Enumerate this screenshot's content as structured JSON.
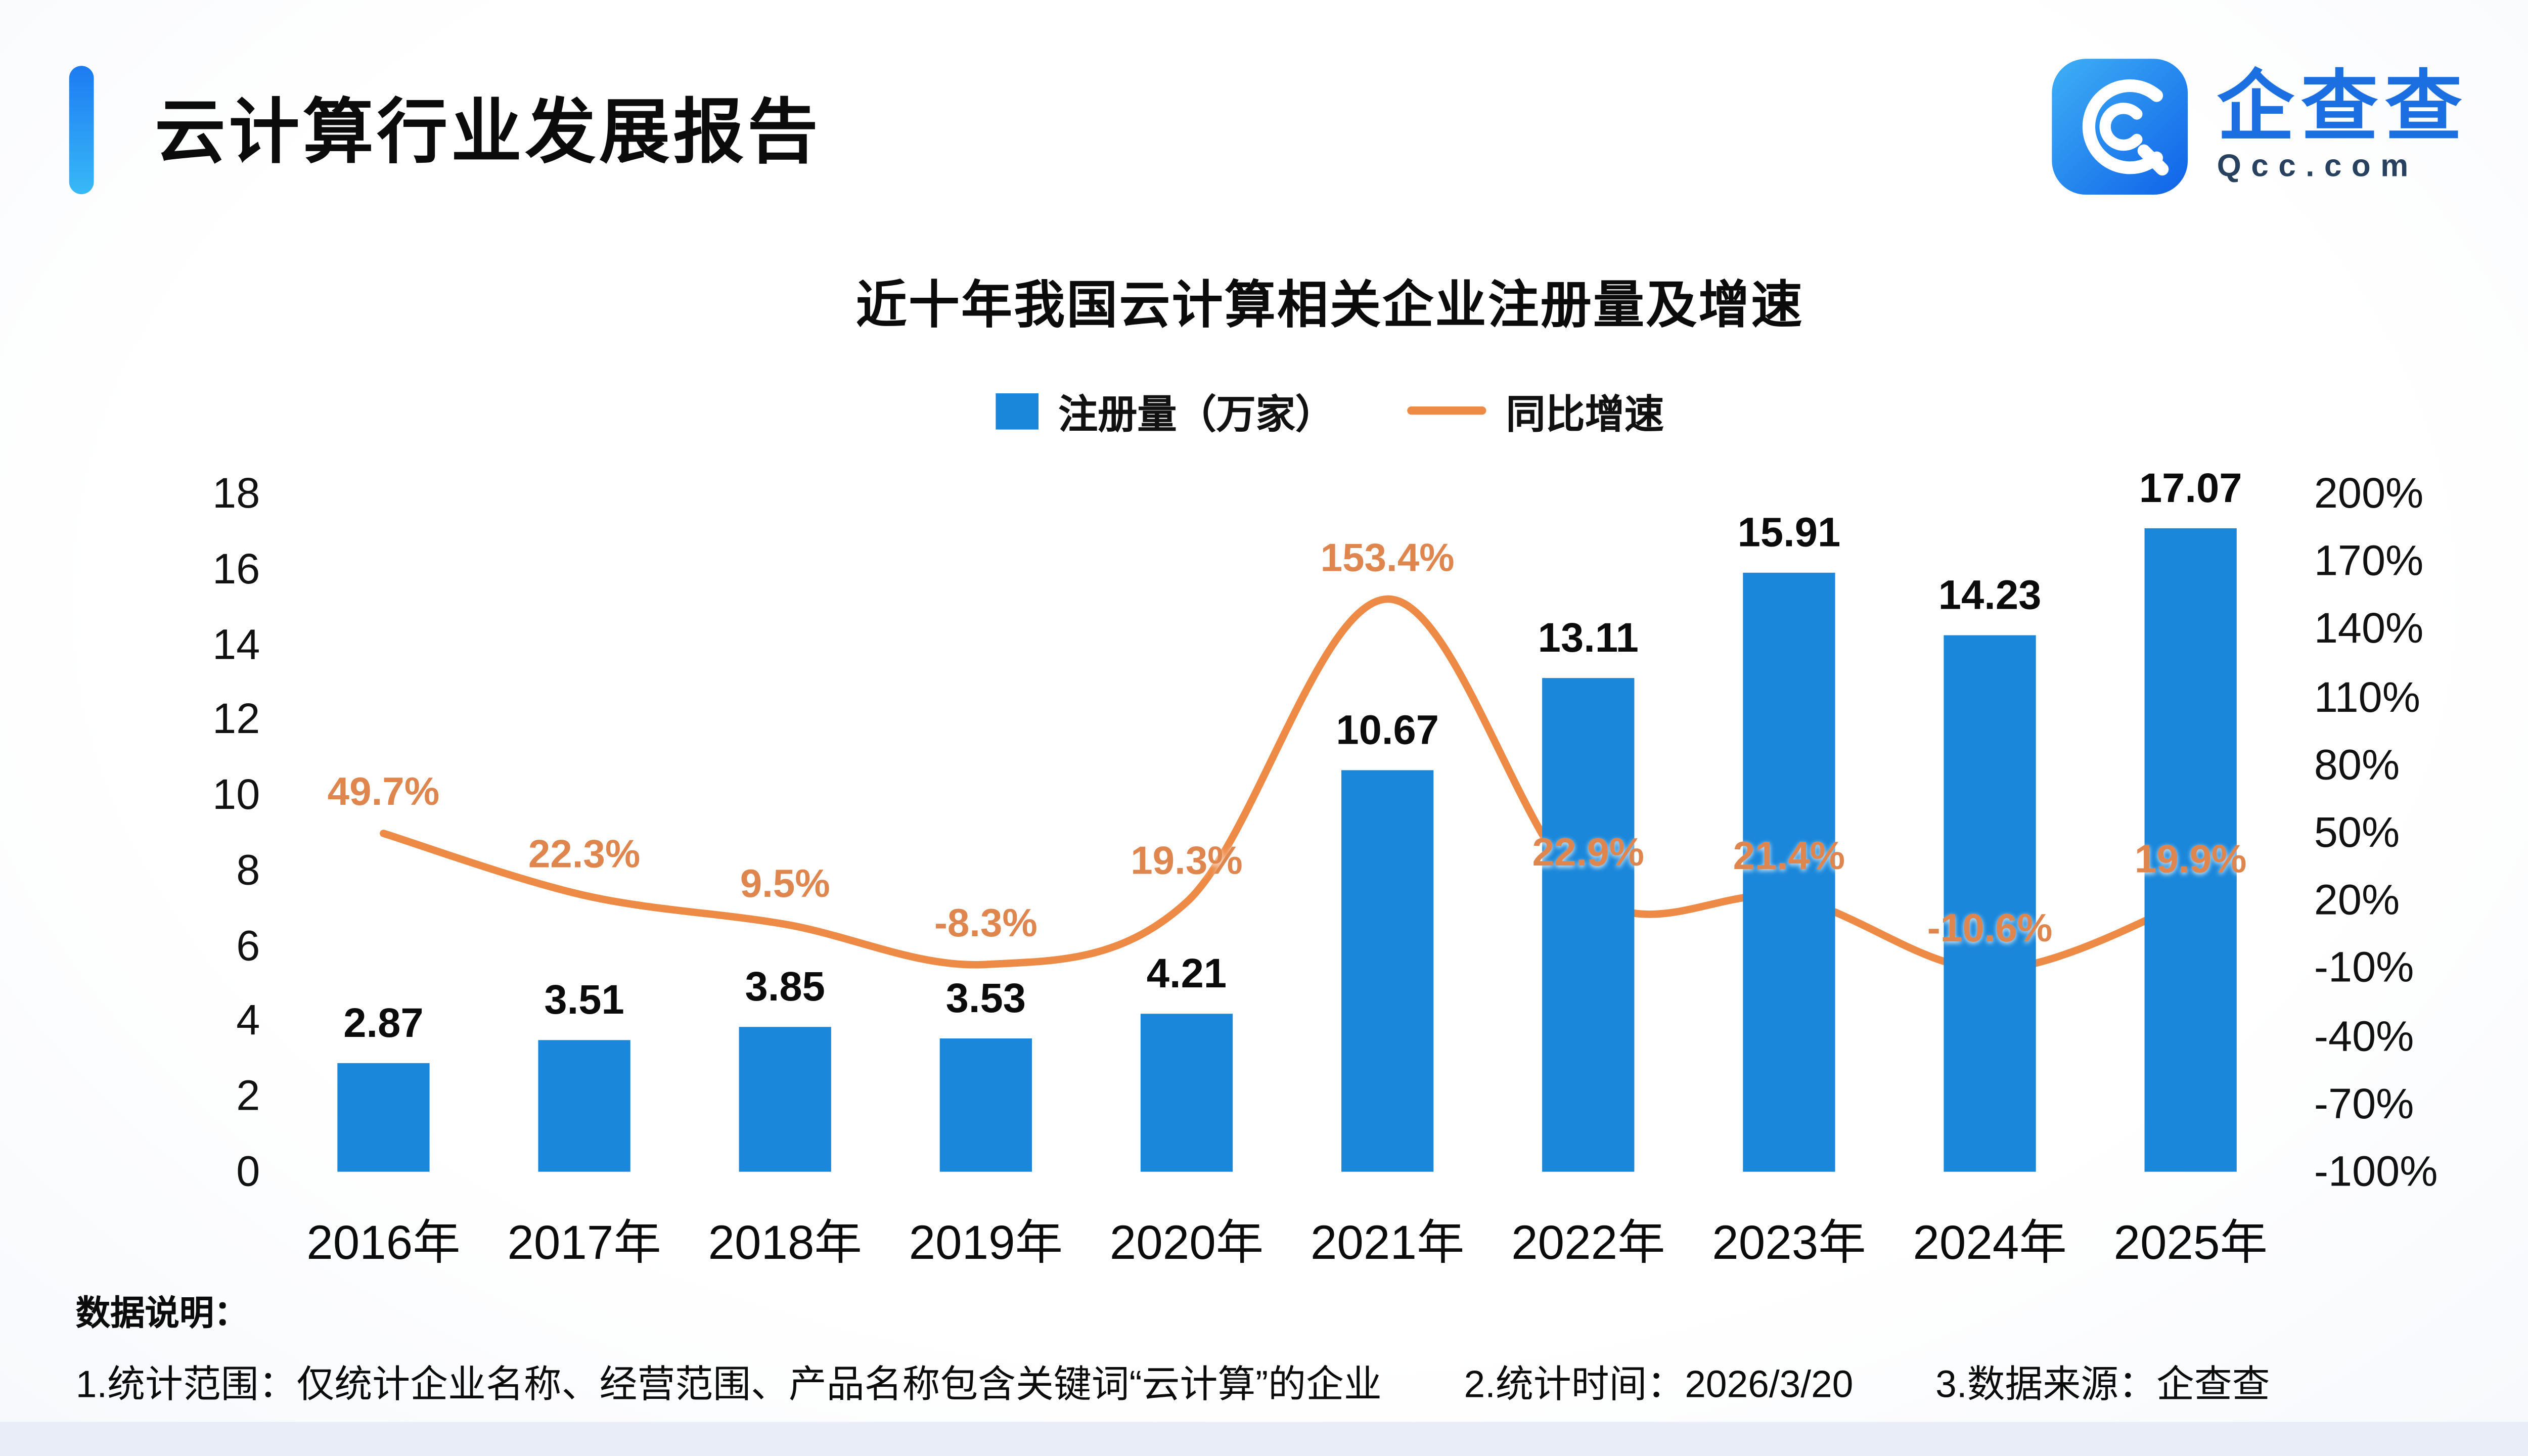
{
  "header": {
    "title": "云计算行业发展报告",
    "logo": {
      "brand": "企查查",
      "domain": "Qcc.com"
    }
  },
  "chart_data": {
    "type": "bar+line",
    "title": "近十年我国云计算相关企业注册量及增速",
    "categories": [
      "2016年",
      "2017年",
      "2018年",
      "2019年",
      "2020年",
      "2021年",
      "2022年",
      "2023年",
      "2024年",
      "2025年"
    ],
    "series": [
      {
        "name": "注册量（万家）",
        "chart_type": "bar",
        "axis": "left",
        "color": "#1a87da",
        "values": [
          2.87,
          3.51,
          3.85,
          3.53,
          4.21,
          10.67,
          13.11,
          15.91,
          14.23,
          17.07
        ],
        "labels": [
          "2.87",
          "3.51",
          "3.85",
          "3.53",
          "4.21",
          "10.67",
          "13.11",
          "15.91",
          "14.23",
          "17.07"
        ]
      },
      {
        "name": "同比增速",
        "chart_type": "line",
        "axis": "right",
        "color": "#ED8A45",
        "label_color": "#df854e",
        "values": [
          49.7,
          22.3,
          9.5,
          -8.3,
          19.3,
          153.4,
          22.9,
          21.4,
          -10.6,
          19.9
        ],
        "labels": [
          "49.7%",
          "22.3%",
          "9.5%",
          "-8.3%",
          "19.3%",
          "153.4%",
          "22.9%",
          "21.4%",
          "-10.6%",
          "19.9%"
        ]
      }
    ],
    "left_axis": {
      "min": 0,
      "max": 18,
      "step": 2
    },
    "right_axis": {
      "min": -100,
      "max": 200,
      "step": 30,
      "unit": "%"
    },
    "grid": false,
    "legend_position": "top"
  },
  "footer": {
    "heading": "数据说明：",
    "notes": [
      "1.统计范围：仅统计企业名称、经营范围、产品名称包含关键词“云计算”的企业",
      "2.统计时间：2026/3/20",
      "3.数据来源：企查查"
    ]
  }
}
